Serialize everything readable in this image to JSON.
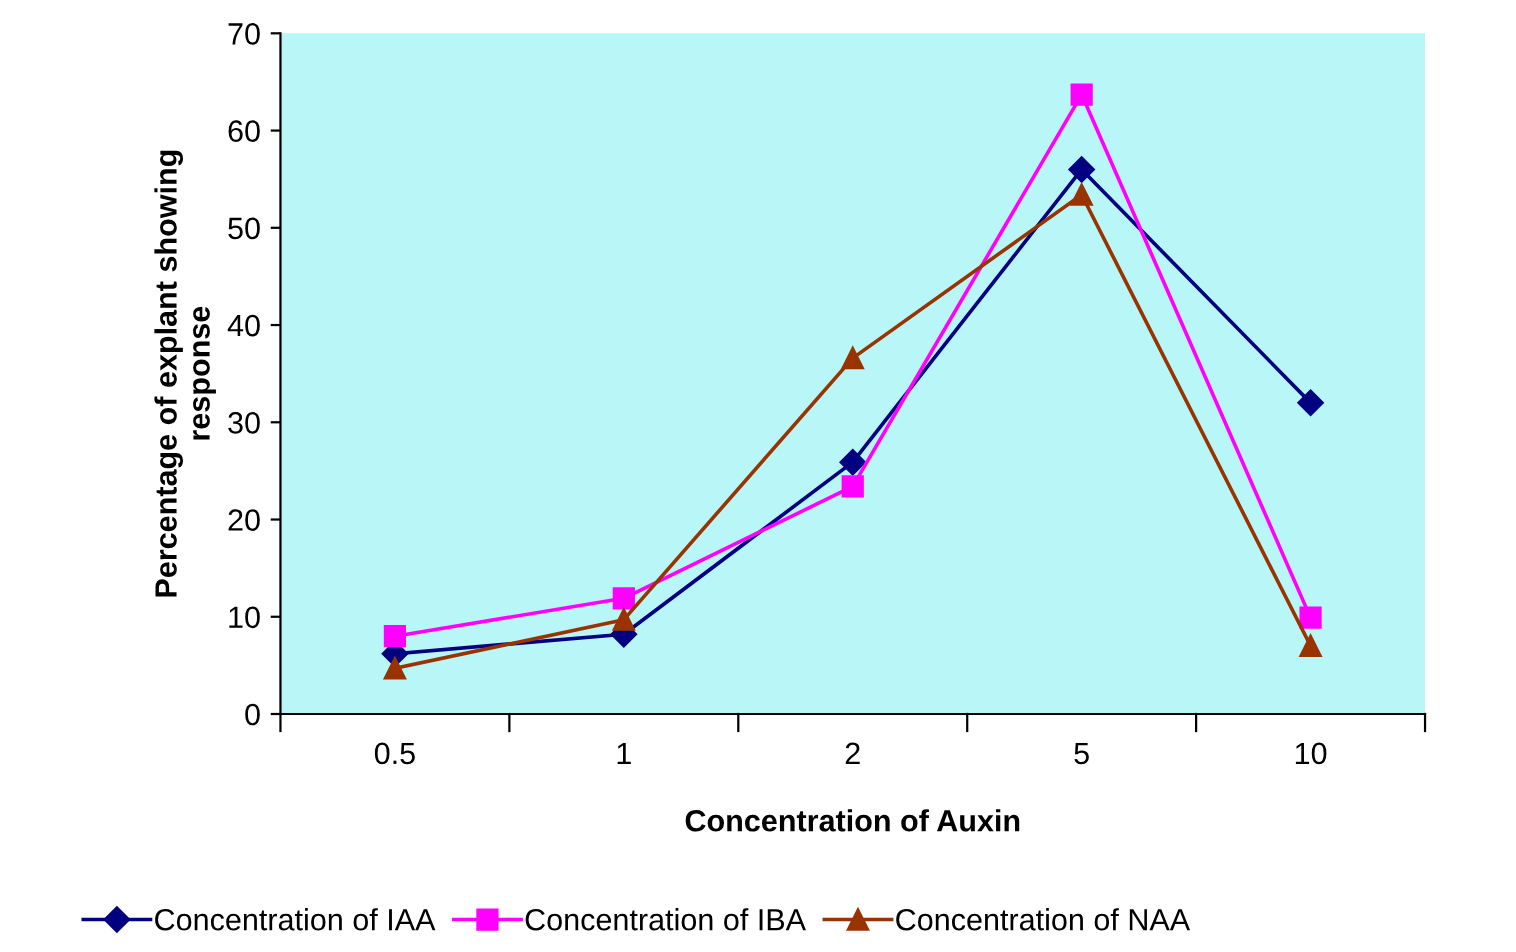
{
  "chart_data": {
    "type": "line",
    "xlabel": "Concentration of Auxin",
    "ylabel": "Percentage of explant showing\nresponse",
    "categories": [
      "0.5",
      "1",
      "2",
      "5",
      "10"
    ],
    "series": [
      {
        "name": "Concentration of IAA",
        "color": "#000080",
        "marker": "diamond",
        "values": [
          6.2,
          8.2,
          25.9,
          56,
          32
        ]
      },
      {
        "name": "Concentration of IBA",
        "color": "#ff00ff",
        "marker": "square",
        "values": [
          8,
          11.9,
          23.4,
          63.7,
          9.9
        ]
      },
      {
        "name": "Concentration of NAA",
        "color": "#993300",
        "marker": "triangle",
        "values": [
          4.7,
          9.7,
          36.6,
          53.4,
          7
        ]
      }
    ],
    "ylim": [
      0,
      70
    ],
    "yticks": [
      0,
      10,
      20,
      30,
      40,
      50,
      60,
      70
    ],
    "grid": false,
    "legend": "bottom",
    "line_style": "solid"
  }
}
